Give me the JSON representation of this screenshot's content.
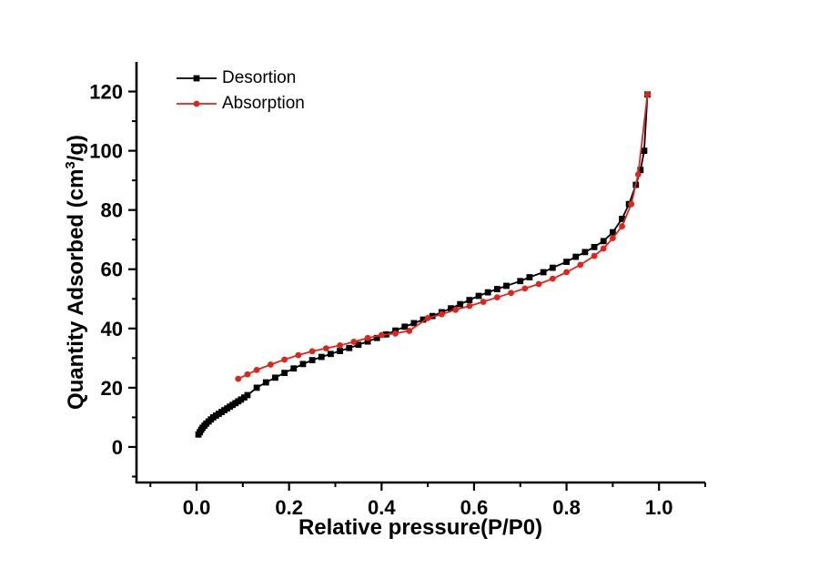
{
  "chart_data": {
    "type": "line",
    "title": "",
    "xlabel": "Relative pressure(P/P0)",
    "ylabel": {
      "pre": "Quantity Adsorbed (cm",
      "sup": "3",
      "post": "/g)"
    },
    "xlim": [
      -0.13,
      1.1
    ],
    "ylim": [
      -12,
      130
    ],
    "grid": false,
    "legend_position": "top-left-inside",
    "xtick_values": [
      0.0,
      0.2,
      0.4,
      0.6,
      0.8,
      1.0
    ],
    "xtick_labels": [
      "0.0",
      "0.2",
      "0.4",
      "0.6",
      "0.8",
      "1.0"
    ],
    "xtick_minor": [
      -0.1,
      0.1,
      0.3,
      0.5,
      0.7,
      0.9,
      1.1
    ],
    "ytick_values": [
      0,
      20,
      40,
      60,
      80,
      100,
      120
    ],
    "ytick_labels": [
      "0",
      "20",
      "40",
      "60",
      "80",
      "100",
      "120"
    ],
    "ytick_minor": [
      -10,
      10,
      30,
      50,
      70,
      90,
      110
    ],
    "axis_color": "#000000",
    "series": [
      {
        "name": "Desortion",
        "color": "#000000",
        "marker": "square",
        "x": [
          0.004,
          0.007,
          0.01,
          0.013,
          0.017,
          0.021,
          0.026,
          0.031,
          0.036,
          0.042,
          0.048,
          0.054,
          0.06,
          0.066,
          0.072,
          0.078,
          0.084,
          0.09,
          0.096,
          0.103,
          0.11,
          0.13,
          0.15,
          0.17,
          0.19,
          0.21,
          0.23,
          0.25,
          0.27,
          0.29,
          0.31,
          0.33,
          0.35,
          0.37,
          0.39,
          0.41,
          0.43,
          0.45,
          0.47,
          0.49,
          0.51,
          0.53,
          0.55,
          0.57,
          0.59,
          0.61,
          0.63,
          0.65,
          0.67,
          0.7,
          0.72,
          0.75,
          0.77,
          0.8,
          0.82,
          0.84,
          0.86,
          0.88,
          0.9,
          0.92,
          0.935,
          0.95,
          0.96,
          0.968,
          0.975
        ],
        "y": [
          4.2,
          5.0,
          5.8,
          6.5,
          7.2,
          7.9,
          8.6,
          9.3,
          10.0,
          10.6,
          11.2,
          11.8,
          12.4,
          13.0,
          13.6,
          14.2,
          14.8,
          15.4,
          16.0,
          16.7,
          17.5,
          20.0,
          21.8,
          23.4,
          25.0,
          26.5,
          28.0,
          29.3,
          30.4,
          31.4,
          32.4,
          33.4,
          34.5,
          35.6,
          36.8,
          38.0,
          39.3,
          40.6,
          41.8,
          43.0,
          44.2,
          45.5,
          46.8,
          48.2,
          49.6,
          51.0,
          52.2,
          53.3,
          54.4,
          56.0,
          57.3,
          59.0,
          60.5,
          62.5,
          64.2,
          65.8,
          67.5,
          69.5,
          72.5,
          77.0,
          82.0,
          88.5,
          93.5,
          100.0,
          119.0
        ]
      },
      {
        "name": "Absorption",
        "color": "#e2231a",
        "marker": "circle",
        "x": [
          0.09,
          0.11,
          0.13,
          0.16,
          0.19,
          0.22,
          0.25,
          0.28,
          0.31,
          0.34,
          0.37,
          0.4,
          0.43,
          0.46,
          0.5,
          0.53,
          0.56,
          0.59,
          0.62,
          0.65,
          0.68,
          0.71,
          0.74,
          0.77,
          0.8,
          0.83,
          0.86,
          0.88,
          0.9,
          0.92,
          0.94,
          0.955,
          0.975
        ],
        "y": [
          23.0,
          24.5,
          26.0,
          27.8,
          29.5,
          31.0,
          32.3,
          33.3,
          34.3,
          35.5,
          36.8,
          37.8,
          38.3,
          39.2,
          43.5,
          44.8,
          46.3,
          47.6,
          49.0,
          50.5,
          52.0,
          53.5,
          55.0,
          56.8,
          59.0,
          61.5,
          64.5,
          67.0,
          70.5,
          74.5,
          82.0,
          92.0,
          119.0
        ]
      }
    ]
  }
}
